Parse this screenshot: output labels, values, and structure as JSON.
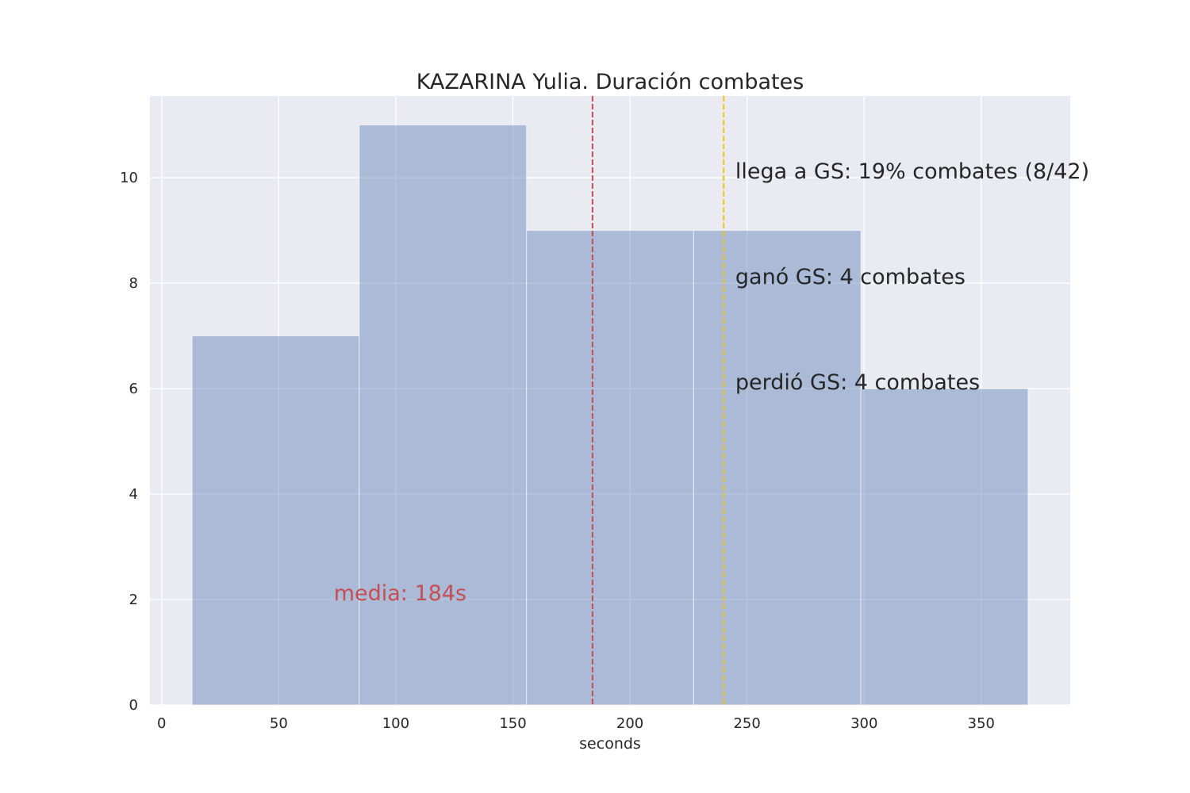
{
  "chart_data": {
    "type": "bar",
    "title": "KAZARINA Yulia. Duración combates",
    "xlabel": "seconds",
    "ylabel": "",
    "xlim": [
      -5,
      388
    ],
    "ylim": [
      0,
      11.55
    ],
    "xticks": [
      0,
      50,
      100,
      150,
      200,
      250,
      300,
      350
    ],
    "yticks": [
      0,
      2,
      4,
      6,
      8,
      10
    ],
    "grid": true,
    "bins": [
      {
        "x0": 13,
        "x1": 84.4,
        "count": 7
      },
      {
        "x0": 84.4,
        "x1": 155.8,
        "count": 11
      },
      {
        "x0": 155.8,
        "x1": 227.2,
        "count": 9
      },
      {
        "x0": 227.2,
        "x1": 298.6,
        "count": 9
      },
      {
        "x0": 298.6,
        "x1": 370,
        "count": 6
      }
    ],
    "bar_color": "#4c72b0",
    "vlines": [
      {
        "x": 184,
        "color": "#c44e52",
        "style": "dashed"
      },
      {
        "x": 240,
        "color": "#f1c40f",
        "style": "dashed"
      }
    ],
    "annotations": [
      {
        "text": "llega a GS: 19% combates (8/42)",
        "x": 245,
        "y": 10,
        "color": "#262626"
      },
      {
        "text": "ganó GS: 4 combates",
        "x": 245,
        "y": 8,
        "color": "#262626"
      },
      {
        "text": "perdió GS: 4 combates",
        "x": 245,
        "y": 6,
        "color": "#262626"
      },
      {
        "text": "media: 184s",
        "x": 73.5,
        "y": 2,
        "color": "#c44e52"
      }
    ]
  }
}
